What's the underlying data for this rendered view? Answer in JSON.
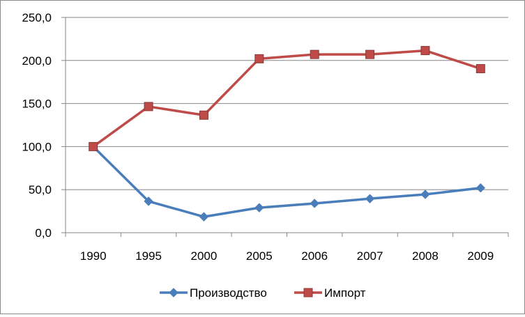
{
  "chart_data": {
    "type": "line",
    "categories": [
      "1990",
      "1995",
      "2000",
      "2005",
      "2006",
      "2007",
      "2008",
      "2009"
    ],
    "series": [
      {
        "name": "Производство",
        "values": [
          100.0,
          36.5,
          18.5,
          29.0,
          34.0,
          39.5,
          44.5,
          52.0
        ],
        "color": "#4a7ebb",
        "marker": "diamond"
      },
      {
        "name": "Импорт",
        "values": [
          100.0,
          146.5,
          136.5,
          202.0,
          207.0,
          207.0,
          211.5,
          190.5
        ],
        "color": "#be4b48",
        "marker": "square"
      }
    ],
    "ylim": [
      0,
      250
    ],
    "yticks": [
      "0,0",
      "50,0",
      "100,0",
      "150,0",
      "200,0",
      "250,0"
    ],
    "grid": true,
    "legend": "bottom",
    "title": "",
    "xlabel": "",
    "ylabel": ""
  }
}
